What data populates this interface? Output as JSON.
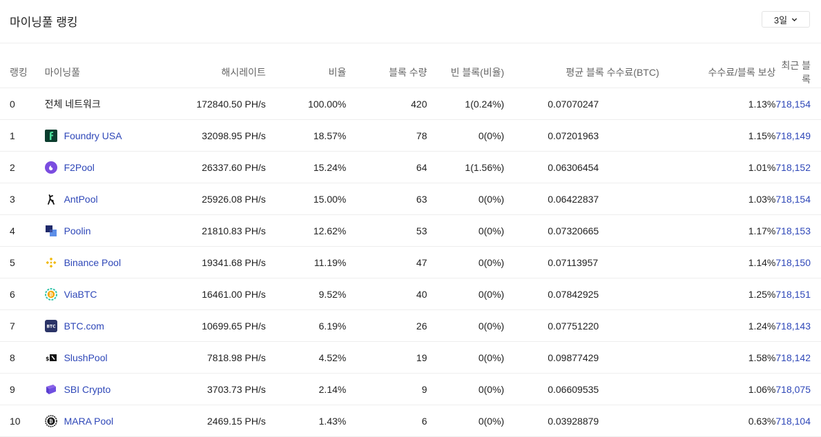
{
  "header": {
    "title": "마이닝풀 랭킹",
    "period_label": "3일"
  },
  "columns": [
    "랭킹",
    "마이닝풀",
    "해시레이트",
    "비율",
    "블록 수량",
    "빈 블록(비율)",
    "평균 블록 수수료(BTC)",
    "수수료/블록 보상",
    "최근 블록"
  ],
  "rows": [
    {
      "rank": "0",
      "pool": "전체 네트워크",
      "icon": "none",
      "hashrate": "172840.50 PH/s",
      "ratio": "100.00%",
      "blocks": "420",
      "empty": "1(0.24%)",
      "fee": "0.07070247",
      "fee_ratio": "1.13%",
      "latest": "718,154"
    },
    {
      "rank": "1",
      "pool": "Foundry USA",
      "icon": "foundry-usa-icon",
      "hashrate": "32098.95 PH/s",
      "ratio": "18.57%",
      "blocks": "78",
      "empty": "0(0%)",
      "fee": "0.07201963",
      "fee_ratio": "1.15%",
      "latest": "718,149"
    },
    {
      "rank": "2",
      "pool": "F2Pool",
      "icon": "f2pool-icon",
      "hashrate": "26337.60 PH/s",
      "ratio": "15.24%",
      "blocks": "64",
      "empty": "1(1.56%)",
      "fee": "0.06306454",
      "fee_ratio": "1.01%",
      "latest": "718,152"
    },
    {
      "rank": "3",
      "pool": "AntPool",
      "icon": "antpool-icon",
      "hashrate": "25926.08 PH/s",
      "ratio": "15.00%",
      "blocks": "63",
      "empty": "0(0%)",
      "fee": "0.06422837",
      "fee_ratio": "1.03%",
      "latest": "718,154"
    },
    {
      "rank": "4",
      "pool": "Poolin",
      "icon": "poolin-icon",
      "hashrate": "21810.83 PH/s",
      "ratio": "12.62%",
      "blocks": "53",
      "empty": "0(0%)",
      "fee": "0.07320665",
      "fee_ratio": "1.17%",
      "latest": "718,153"
    },
    {
      "rank": "5",
      "pool": "Binance Pool",
      "icon": "binance-pool-icon",
      "hashrate": "19341.68 PH/s",
      "ratio": "11.19%",
      "blocks": "47",
      "empty": "0(0%)",
      "fee": "0.07113957",
      "fee_ratio": "1.14%",
      "latest": "718,150"
    },
    {
      "rank": "6",
      "pool": "ViaBTC",
      "icon": "viabtc-icon",
      "hashrate": "16461.00 PH/s",
      "ratio": "9.52%",
      "blocks": "40",
      "empty": "0(0%)",
      "fee": "0.07842925",
      "fee_ratio": "1.25%",
      "latest": "718,151"
    },
    {
      "rank": "7",
      "pool": "BTC.com",
      "icon": "btc-com-icon",
      "hashrate": "10699.65 PH/s",
      "ratio": "6.19%",
      "blocks": "26",
      "empty": "0(0%)",
      "fee": "0.07751220",
      "fee_ratio": "1.24%",
      "latest": "718,143"
    },
    {
      "rank": "8",
      "pool": "SlushPool",
      "icon": "slushpool-icon",
      "hashrate": "7818.98 PH/s",
      "ratio": "4.52%",
      "blocks": "19",
      "empty": "0(0%)",
      "fee": "0.09877429",
      "fee_ratio": "1.58%",
      "latest": "718,142"
    },
    {
      "rank": "9",
      "pool": "SBI Crypto",
      "icon": "sbi-crypto-icon",
      "hashrate": "3703.73 PH/s",
      "ratio": "2.14%",
      "blocks": "9",
      "empty": "0(0%)",
      "fee": "0.06609535",
      "fee_ratio": "1.06%",
      "latest": "718,075"
    },
    {
      "rank": "10",
      "pool": "MARA Pool",
      "icon": "mara-pool-icon",
      "hashrate": "2469.15 PH/s",
      "ratio": "1.43%",
      "blocks": "6",
      "empty": "0(0%)",
      "fee": "0.03928879",
      "fee_ratio": "0.63%",
      "latest": "718,104"
    }
  ]
}
